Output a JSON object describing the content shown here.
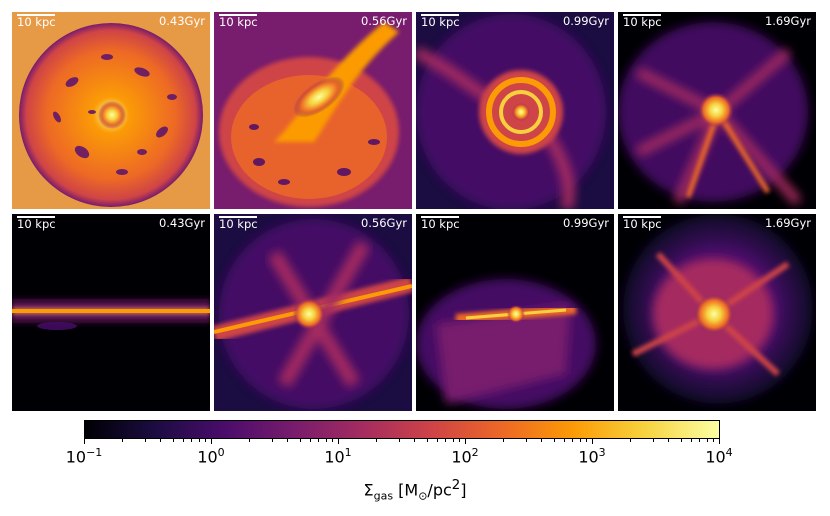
{
  "panels": [
    {
      "scale": "10 kpc",
      "time": "0.43Gyr"
    },
    {
      "scale": "10 kpc",
      "time": "0.56Gyr"
    },
    {
      "scale": "10 kpc",
      "time": "0.99Gyr"
    },
    {
      "scale": "10 kpc",
      "time": "1.69Gyr"
    },
    {
      "scale": "10 kpc",
      "time": "0.43Gyr"
    },
    {
      "scale": "10 kpc",
      "time": "0.56Gyr"
    },
    {
      "scale": "10 kpc",
      "time": "0.99Gyr"
    },
    {
      "scale": "10 kpc",
      "time": "1.69Gyr"
    }
  ],
  "colorbar": {
    "base": "10",
    "exponents": [
      "−1",
      "0",
      "1",
      "2",
      "3",
      "4"
    ],
    "label_main": "Σ",
    "label_sub": "gas",
    "label_unit_open": " [M",
    "label_unit_sub": "⊙",
    "label_unit_mid": "/pc",
    "label_unit_sup": "2",
    "label_unit_close": "]",
    "colormap": "inferno",
    "colors": [
      "#000004",
      "#1b0c41",
      "#4a0c6b",
      "#781c6d",
      "#a52c60",
      "#cf4446",
      "#ed6925",
      "#fb9b06",
      "#f7d13d",
      "#fcffa4"
    ]
  }
}
